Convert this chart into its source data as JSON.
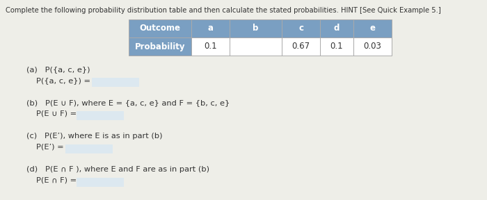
{
  "title": "Complete the following probability distribution table and then calculate the stated probabilities. HINT [See Quick Example 5.]",
  "table_headers": [
    "Outcome",
    "a",
    "b",
    "c",
    "d",
    "e"
  ],
  "table_prob_label": "Probability",
  "table_values": [
    "0.1",
    "",
    "0.67",
    "0.1",
    "0.03"
  ],
  "header_bg": "#7a9fc2",
  "header_text_color": "#ffffff",
  "cell_bg": "#ffffff",
  "answer_box_color": "#dce8f0",
  "bg_color": "#eeeee8",
  "text_color": "#333333",
  "font_size_title": 7.2,
  "font_size_table": 8.5,
  "font_size_body": 8.2,
  "sections": [
    {
      "label": "(a)   P({a, c, e})",
      "answer_label": "P({a, c, e}) ="
    },
    {
      "label": "(b)   P(E ∪ F), where E = {a, c, e} and F = {b, c, e}",
      "answer_label": "P(E ∪ F) ="
    },
    {
      "label": "(c)   P(E’), where E is as in part (b)",
      "answer_label": "P(E’) ="
    },
    {
      "label": "(d)   P(E ∩ F ), where E and F are as in part (b)",
      "answer_label": "P(E ∩ F) ="
    }
  ]
}
